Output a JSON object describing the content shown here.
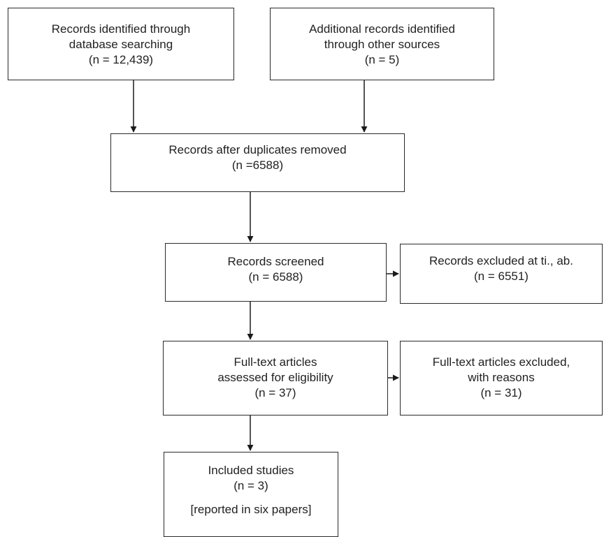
{
  "boxes": {
    "db_search": {
      "line1": "Records identified through",
      "line2": "database searching",
      "count": "(n = 12,439)"
    },
    "other_sources": {
      "line1": "Additional records identified",
      "line2": "through other sources",
      "count": "(n = 5)"
    },
    "after_duplicates": {
      "line1": "Records after duplicates removed",
      "count": "(n =6588)"
    },
    "screened": {
      "line1": "Records screened",
      "count": "(n = 6588)"
    },
    "excluded_ti_ab": {
      "line1": "Records excluded at ti., ab.",
      "count": "(n = 6551)"
    },
    "full_text_assessed": {
      "line1": "Full-text articles",
      "line2": "assessed for eligibility",
      "count": "(n = 37)"
    },
    "full_text_excluded": {
      "line1": "Full-text articles excluded,",
      "line2": "with reasons",
      "count": "(n = 31)"
    },
    "included": {
      "line1": "Included studies",
      "count": "(n = 3)",
      "note": "[reported in six papers]"
    }
  },
  "colors": {
    "line": "#1a1a1a",
    "text": "#222222",
    "background": "#ffffff"
  }
}
